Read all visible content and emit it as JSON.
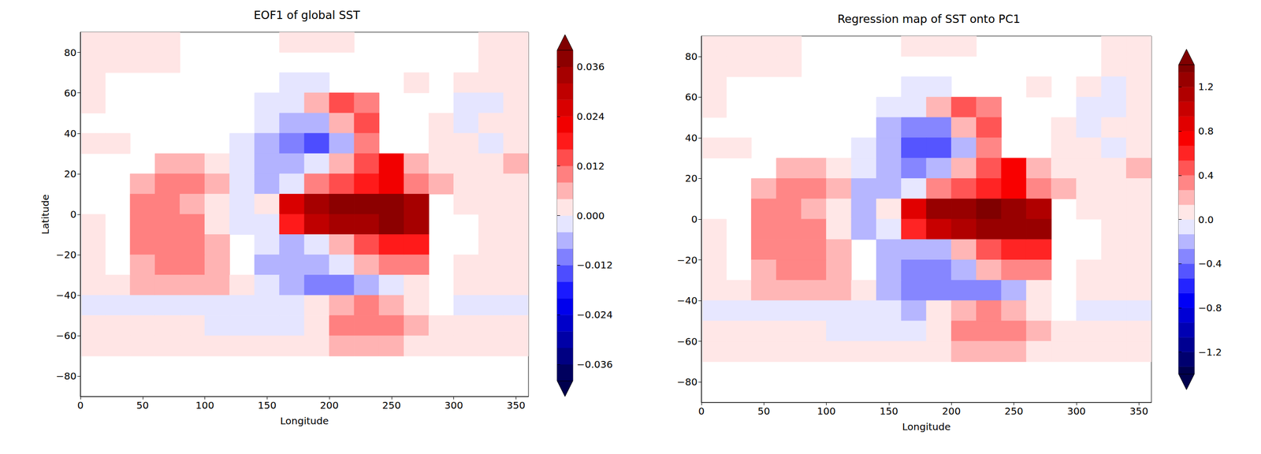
{
  "chart_data": [
    {
      "type": "heatmap",
      "title": "EOF1 of global SST",
      "xlabel": "Longitude",
      "ylabel": "Latitude",
      "color": "seismic",
      "xlim": [
        0,
        360
      ],
      "xticks": [
        0,
        50,
        100,
        150,
        200,
        250,
        300,
        350
      ],
      "ylim": [
        -90,
        90
      ],
      "yticks": [
        {
          "value": -80,
          "label": "−80"
        },
        {
          "value": -60,
          "label": "−60"
        },
        {
          "value": -40,
          "label": "−40"
        },
        {
          "value": -20,
          "label": "−20"
        },
        0,
        20,
        40,
        60,
        80
      ],
      "colorbar": {
        "range": [
          -0.04,
          0.04
        ],
        "ticks": [
          {
            "value": -0.036,
            "label": "−0.036"
          },
          {
            "value": -0.024,
            "label": "−0.024"
          },
          {
            "value": -0.012,
            "label": "−0.012"
          },
          {
            "value": 0,
            "label": "0.000"
          },
          0.012,
          0.024,
          0.036
        ]
      },
      "x": [
        10,
        30,
        50,
        70,
        90,
        110,
        130,
        150,
        170,
        190,
        210,
        230,
        250,
        270,
        290,
        310,
        330,
        350
      ],
      "y": [
        85,
        75,
        65,
        55,
        45,
        35,
        25,
        15,
        5,
        -5,
        -15,
        -25,
        -35,
        -45,
        -55,
        -65,
        -75,
        -85
      ],
      "values": [
        [
          0.002,
          0.002,
          0.002,
          0.001,
          null,
          null,
          null,
          null,
          0.001,
          0.001,
          0.001,
          null,
          null,
          null,
          null,
          null,
          0.002,
          0.002
        ],
        [
          0.002,
          0.002,
          0.002,
          0.002,
          null,
          null,
          null,
          null,
          null,
          null,
          null,
          null,
          null,
          null,
          null,
          null,
          0.002,
          0.002
        ],
        [
          0.002,
          null,
          null,
          null,
          null,
          null,
          null,
          null,
          -0.002,
          -0.002,
          null,
          null,
          null,
          0.001,
          null,
          0.002,
          0.002,
          0.002
        ],
        [
          0.002,
          null,
          null,
          null,
          null,
          null,
          null,
          -0.002,
          -0.003,
          0.004,
          0.012,
          0.01,
          null,
          null,
          null,
          -0.002,
          -0.002,
          0.001
        ],
        [
          null,
          null,
          null,
          null,
          null,
          null,
          null,
          -0.004,
          -0.008,
          -0.008,
          0.004,
          0.012,
          null,
          null,
          0.002,
          -0.002,
          0.0,
          0.002
        ],
        [
          0.002,
          0.002,
          null,
          null,
          null,
          null,
          -0.002,
          -0.006,
          -0.012,
          -0.014,
          -0.006,
          0.01,
          null,
          null,
          0.002,
          0.0,
          -0.002,
          0.002
        ],
        [
          null,
          null,
          null,
          0.006,
          0.006,
          0.002,
          -0.002,
          -0.006,
          -0.008,
          -0.004,
          0.004,
          0.012,
          0.02,
          0.004,
          0.002,
          0.0,
          0.002,
          0.004
        ],
        [
          null,
          null,
          0.006,
          0.008,
          0.008,
          0.004,
          -0.004,
          -0.006,
          -0.002,
          0.008,
          0.014,
          0.018,
          0.02,
          0.01,
          0.004,
          0.002,
          0.002,
          0.002
        ],
        [
          null,
          null,
          0.008,
          0.008,
          0.006,
          0.002,
          -0.004,
          0.002,
          0.024,
          0.034,
          0.036,
          0.038,
          0.036,
          0.032,
          null,
          0.002,
          0.002,
          0.002
        ],
        [
          0.002,
          null,
          0.008,
          0.01,
          0.008,
          0.0,
          -0.004,
          -0.002,
          0.018,
          0.028,
          0.032,
          0.034,
          0.036,
          0.034,
          null,
          null,
          0.002,
          0.002
        ],
        [
          0.002,
          null,
          0.008,
          0.01,
          0.01,
          0.006,
          null,
          -0.004,
          -0.006,
          -0.004,
          0.006,
          0.014,
          0.016,
          0.018,
          null,
          null,
          0.002,
          0.002
        ],
        [
          0.0,
          null,
          0.006,
          0.01,
          0.01,
          0.006,
          null,
          -0.006,
          -0.008,
          -0.008,
          -0.004,
          0.004,
          0.008,
          0.008,
          null,
          0.002,
          0.002,
          0.002
        ],
        [
          0.002,
          0.002,
          0.004,
          0.004,
          0.004,
          0.004,
          0.0,
          -0.004,
          -0.008,
          -0.01,
          -0.01,
          -0.008,
          -0.004,
          0.002,
          null,
          0.0,
          0.002,
          0.002
        ],
        [
          -0.002,
          -0.002,
          -0.002,
          -0.002,
          -0.002,
          -0.002,
          -0.002,
          -0.002,
          -0.004,
          0.0,
          0.004,
          0.008,
          0.006,
          0.002,
          null,
          -0.002,
          -0.002,
          -0.002
        ],
        [
          0.002,
          0.002,
          0.002,
          0.002,
          0.002,
          -0.002,
          -0.002,
          -0.002,
          -0.002,
          0.002,
          0.008,
          0.01,
          0.008,
          0.004,
          0.002,
          0.002,
          0.002,
          0.002
        ],
        [
          0.002,
          0.002,
          0.002,
          0.002,
          0.002,
          0.002,
          0.002,
          0.002,
          0.002,
          0.002,
          0.004,
          0.004,
          0.004,
          0.002,
          0.002,
          0.002,
          0.002,
          0.002
        ],
        [
          null,
          null,
          null,
          null,
          null,
          null,
          null,
          null,
          null,
          null,
          null,
          null,
          null,
          null,
          null,
          null,
          null,
          null
        ],
        [
          null,
          null,
          null,
          null,
          null,
          null,
          null,
          null,
          null,
          null,
          null,
          null,
          null,
          null,
          null,
          null,
          null,
          null
        ]
      ]
    },
    {
      "type": "heatmap",
      "title": "Regression map of SST onto PC1",
      "xlabel": "Longitude",
      "color": "seismic",
      "xlim": [
        0,
        360
      ],
      "xticks": [
        0,
        50,
        100,
        150,
        200,
        250,
        300,
        350
      ],
      "ylim": [
        -90,
        90
      ],
      "yticks": [
        {
          "value": -80,
          "label": "−80"
        },
        {
          "value": -60,
          "label": "−60"
        },
        {
          "value": -40,
          "label": "−40"
        },
        {
          "value": -20,
          "label": "−20"
        },
        0,
        20,
        40,
        60,
        80
      ],
      "colorbar": {
        "range": [
          -1.4,
          1.4
        ],
        "ticks": [
          {
            "value": -1.2,
            "label": "−1.2"
          },
          {
            "value": -0.8,
            "label": "−0.8"
          },
          {
            "value": -0.4,
            "label": "−0.4"
          },
          {
            "value": 0,
            "label": "0.0"
          },
          0.4,
          0.8,
          1.2
        ]
      },
      "x": [
        10,
        30,
        50,
        70,
        90,
        110,
        130,
        150,
        170,
        190,
        210,
        230,
        250,
        270,
        290,
        310,
        330,
        350
      ],
      "y": [
        85,
        75,
        65,
        55,
        45,
        35,
        25,
        15,
        5,
        -5,
        -15,
        -25,
        -35,
        -45,
        -55,
        -65,
        -75,
        -85
      ],
      "values": [
        [
          0.05,
          0.05,
          0.05,
          0.05,
          null,
          null,
          null,
          null,
          0.05,
          0.05,
          0.05,
          null,
          null,
          null,
          null,
          null,
          0.05,
          0.05
        ],
        [
          0.05,
          0.05,
          0.05,
          0.05,
          null,
          null,
          null,
          null,
          null,
          null,
          null,
          null,
          null,
          null,
          null,
          null,
          0.05,
          0.05
        ],
        [
          0.05,
          null,
          null,
          null,
          null,
          null,
          null,
          null,
          -0.05,
          -0.05,
          null,
          null,
          null,
          0.05,
          null,
          0.05,
          -0.05,
          0.05
        ],
        [
          0.05,
          null,
          null,
          null,
          null,
          null,
          null,
          -0.1,
          -0.1,
          0.15,
          0.4,
          0.35,
          null,
          null,
          null,
          -0.1,
          -0.05,
          0.05
        ],
        [
          null,
          null,
          null,
          null,
          null,
          null,
          null,
          -0.15,
          -0.3,
          -0.3,
          0.15,
          0.4,
          null,
          null,
          0.05,
          -0.1,
          0.0,
          0.05
        ],
        [
          0.05,
          0.05,
          null,
          null,
          null,
          null,
          -0.1,
          -0.25,
          -0.45,
          -0.5,
          -0.25,
          0.35,
          null,
          null,
          0.05,
          0.0,
          -0.05,
          0.05
        ],
        [
          null,
          null,
          null,
          0.2,
          0.2,
          0.05,
          -0.1,
          -0.25,
          -0.3,
          -0.15,
          0.15,
          0.45,
          0.7,
          0.15,
          0.05,
          0.0,
          0.05,
          0.15
        ],
        [
          null,
          null,
          0.2,
          0.3,
          0.3,
          0.15,
          -0.15,
          -0.25,
          -0.1,
          0.3,
          0.5,
          0.65,
          0.7,
          0.35,
          0.15,
          0.05,
          0.05,
          0.05
        ],
        [
          null,
          null,
          0.3,
          0.3,
          0.2,
          0.05,
          -0.15,
          0.05,
          0.85,
          1.2,
          1.3,
          1.35,
          1.3,
          1.15,
          null,
          0.05,
          0.05,
          0.05
        ],
        [
          0.05,
          null,
          0.3,
          0.35,
          0.3,
          0.0,
          -0.15,
          -0.1,
          0.65,
          1.0,
          1.15,
          1.2,
          1.3,
          1.2,
          null,
          null,
          0.05,
          0.05
        ],
        [
          0.05,
          null,
          0.3,
          0.35,
          0.35,
          0.2,
          null,
          -0.15,
          -0.25,
          -0.15,
          0.2,
          0.5,
          0.55,
          0.65,
          null,
          null,
          0.05,
          0.05
        ],
        [
          0.0,
          null,
          0.2,
          0.35,
          0.35,
          0.2,
          null,
          -0.25,
          -0.35,
          -0.35,
          -0.15,
          0.15,
          0.3,
          0.3,
          null,
          0.05,
          0.05,
          0.05
        ],
        [
          0.05,
          0.05,
          0.15,
          0.15,
          0.15,
          0.15,
          0.0,
          -0.15,
          -0.3,
          -0.4,
          -0.4,
          -0.3,
          -0.15,
          0.05,
          null,
          0.0,
          0.05,
          0.05
        ],
        [
          -0.05,
          -0.1,
          -0.1,
          -0.05,
          -0.05,
          -0.05,
          -0.1,
          -0.1,
          -0.15,
          0.0,
          0.15,
          0.3,
          0.2,
          0.05,
          null,
          -0.05,
          -0.05,
          -0.1
        ],
        [
          0.05,
          0.05,
          0.05,
          0.05,
          0.05,
          -0.05,
          -0.05,
          -0.05,
          -0.05,
          0.05,
          0.3,
          0.35,
          0.3,
          0.15,
          0.05,
          0.05,
          0.05,
          0.05
        ],
        [
          0.05,
          0.05,
          0.05,
          0.05,
          0.05,
          0.05,
          0.05,
          0.05,
          0.05,
          0.05,
          0.15,
          0.15,
          0.15,
          0.05,
          0.05,
          0.05,
          0.05,
          0.05
        ],
        [
          null,
          null,
          null,
          null,
          null,
          null,
          null,
          null,
          null,
          null,
          null,
          null,
          null,
          null,
          null,
          null,
          null,
          null
        ],
        [
          null,
          null,
          null,
          null,
          null,
          null,
          null,
          null,
          null,
          null,
          null,
          null,
          null,
          null,
          null,
          null,
          null,
          null
        ]
      ]
    }
  ]
}
